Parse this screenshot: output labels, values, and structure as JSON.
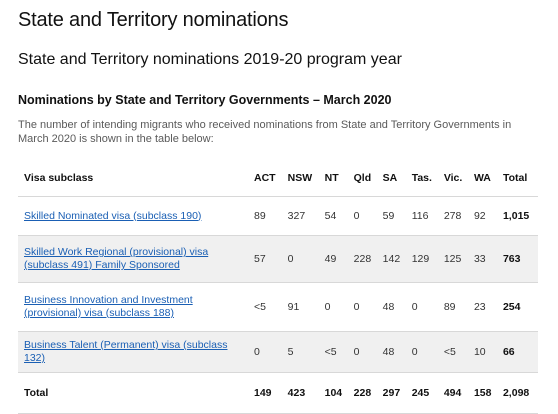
{
  "page_title": "State and Territory nominations",
  "section_title": "State and Territory nominations 2019-20 program year",
  "sub_title": "Nominations by State and Territory Governments – March 2020",
  "intro": "The number of intending migrants who received nominations from State and Territory Governments in March 2020 is shown in the table below:",
  "table": {
    "headers": [
      "Visa subclass",
      "ACT",
      "NSW",
      "NT",
      "Qld",
      "SA",
      "Tas.",
      "Vic.",
      "WA",
      "Total"
    ],
    "rows": [
      {
        "label": "Skilled Nominated visa (subclass 190)",
        "values": [
          "89",
          "327",
          "54",
          "0",
          "59",
          "116",
          "278",
          "92",
          "1,015"
        ]
      },
      {
        "label": "Skilled Work Regional (provisional) visa (subclass 491) Family Sponsored",
        "values": [
          "57",
          "0",
          "49",
          "228",
          "142",
          "129",
          "125",
          "33",
          "763"
        ]
      },
      {
        "label": "Business Innovation and Investment (provisional) visa (subclass 188)",
        "values": [
          "<5",
          "91",
          "0",
          "0",
          "48",
          "0",
          "89",
          "23",
          "254"
        ]
      },
      {
        "label": "Business Talent (Permanent) visa (subclass 132)",
        "values": [
          "0",
          "5",
          "<5",
          "0",
          "48",
          "0",
          "<5",
          "10",
          "66"
        ]
      }
    ],
    "total_row": {
      "label": "Total",
      "values": [
        "149",
        "423",
        "104",
        "228",
        "297",
        "245",
        "494",
        "158",
        "2,098"
      ]
    }
  },
  "colors": {
    "link": "#1a5fb4",
    "row_shade": "#f0f0f0",
    "border": "#d8d8d8"
  }
}
